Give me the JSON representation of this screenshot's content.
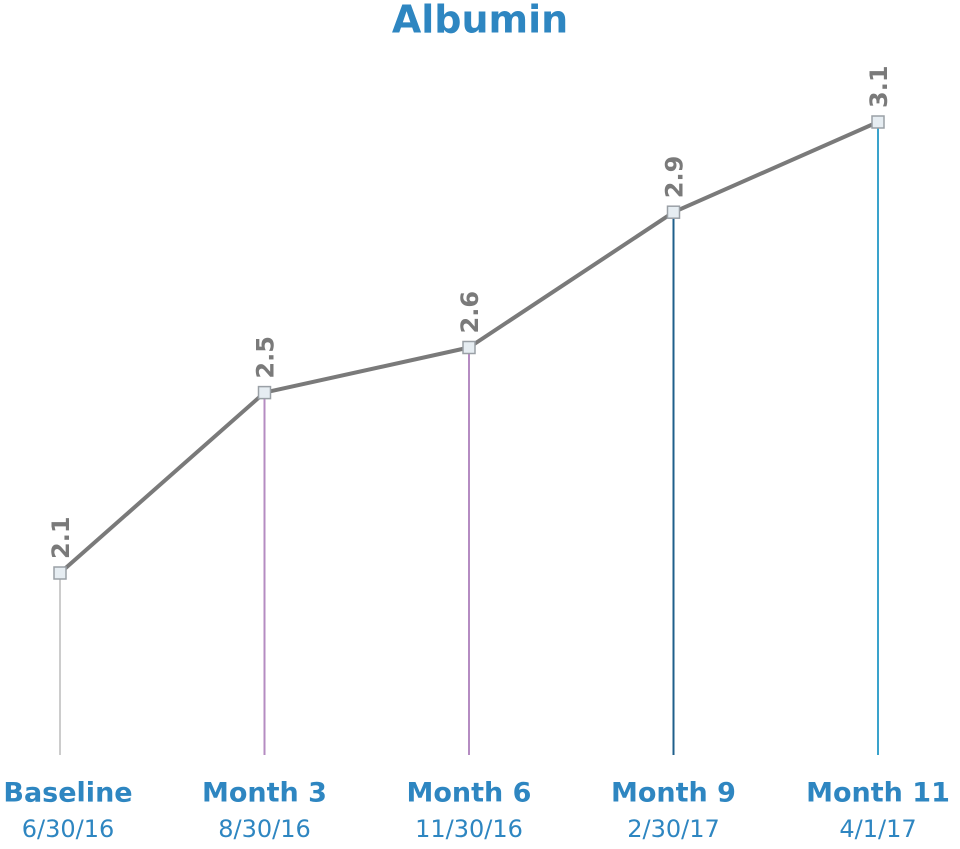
{
  "chart_data": {
    "type": "line",
    "title": "Albumin",
    "categories": [
      "Baseline",
      "Month 3",
      "Month 6",
      "Month 9",
      "Month 11"
    ],
    "dates": [
      "6/30/16",
      "8/30/16",
      "11/30/16",
      "2/30/17",
      "4/1/17"
    ],
    "values": [
      2.1,
      2.5,
      2.6,
      2.9,
      3.1
    ],
    "color": "#7a7a7a",
    "marker_fill": "#e6edf2",
    "marker_stroke": "#9aa0a6",
    "drop_line_colors": [
      "#cccccc",
      "#b58cc2",
      "#b58cc2",
      "#1f5f8b",
      "#3aa3cc"
    ],
    "label_color": "#2e86c1"
  }
}
